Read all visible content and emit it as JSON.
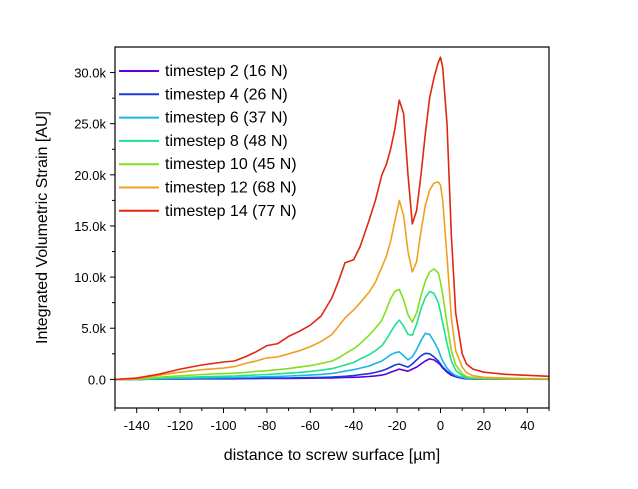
{
  "chart_data": {
    "type": "line",
    "title": "",
    "xlabel": "distance to screw surface   [µm]",
    "ylabel": "Integrated Volumetric Strain   [AU]",
    "xlim": [
      -150,
      50
    ],
    "ylim": [
      -2800,
      32500
    ],
    "x_ticks": [
      -140,
      -120,
      -100,
      -80,
      -60,
      -40,
      -20,
      0,
      20,
      40
    ],
    "x_tick_labels": [
      "-140",
      "-120",
      "-100",
      "-80",
      "-60",
      "-40",
      "-20",
      "0",
      "20",
      "40"
    ],
    "y_ticks": [
      0,
      5000,
      10000,
      15000,
      20000,
      25000,
      30000
    ],
    "y_tick_labels": [
      "0.0",
      "5.0k",
      "10.0k",
      "15.0k",
      "20.0k",
      "25.0k",
      "30.0k"
    ],
    "grid": false,
    "legend_position": "top-left",
    "x": [
      -150,
      -140,
      -130,
      -120,
      -110,
      -100,
      -95,
      -90,
      -85,
      -80,
      -75,
      -70,
      -65,
      -60,
      -55,
      -50,
      -47,
      -44,
      -40,
      -37,
      -33,
      -30,
      -27,
      -25,
      -23,
      -21,
      -19,
      -17,
      -15,
      -13,
      -11,
      -9,
      -7,
      -5,
      -3,
      -1,
      0,
      1,
      3,
      5,
      7,
      10,
      12,
      15,
      20,
      30,
      40,
      50
    ],
    "series": [
      {
        "name": "timestep 2  (16 N)",
        "color": "#6000e0",
        "values": [
          0,
          0,
          30,
          50,
          60,
          60,
          60,
          70,
          70,
          80,
          80,
          90,
          100,
          110,
          120,
          140,
          160,
          180,
          200,
          220,
          280,
          340,
          420,
          520,
          700,
          850,
          1000,
          900,
          800,
          1000,
          1200,
          1500,
          1800,
          2000,
          1900,
          1600,
          1400,
          1100,
          700,
          400,
          250,
          100,
          60,
          40,
          30,
          20,
          20,
          10
        ]
      },
      {
        "name": "timestep 4  (26 N)",
        "color": "#1b38d8",
        "values": [
          0,
          0,
          40,
          60,
          80,
          80,
          90,
          100,
          110,
          110,
          120,
          130,
          150,
          170,
          190,
          220,
          260,
          300,
          380,
          460,
          550,
          680,
          850,
          1000,
          1200,
          1400,
          1500,
          1350,
          1200,
          1500,
          1900,
          2300,
          2550,
          2500,
          2200,
          1800,
          1500,
          1200,
          800,
          500,
          300,
          150,
          80,
          50,
          40,
          30,
          20,
          20
        ]
      },
      {
        "name": "timestep 6  (37 N)",
        "color": "#16b6e8",
        "values": [
          0,
          0,
          60,
          100,
          140,
          160,
          170,
          200,
          230,
          260,
          290,
          330,
          370,
          420,
          490,
          580,
          680,
          800,
          950,
          1100,
          1300,
          1550,
          1800,
          2100,
          2400,
          2600,
          2700,
          2300,
          1900,
          2200,
          2900,
          3800,
          4500,
          4400,
          3700,
          2900,
          2300,
          1800,
          1100,
          650,
          380,
          180,
          100,
          70,
          50,
          40,
          30,
          20
        ]
      },
      {
        "name": "timestep 8  (48 N)",
        "color": "#1ee090",
        "values": [
          0,
          0,
          100,
          180,
          250,
          300,
          330,
          380,
          430,
          480,
          540,
          600,
          680,
          780,
          900,
          1050,
          1220,
          1400,
          1650,
          2000,
          2400,
          2800,
          3300,
          3900,
          4600,
          5300,
          5800,
          5200,
          4400,
          4300,
          5400,
          6900,
          8000,
          8600,
          8400,
          7500,
          6600,
          5500,
          3500,
          1800,
          900,
          350,
          180,
          100,
          70,
          50,
          40,
          30
        ]
      },
      {
        "name": "timestep 10 (45 N)",
        "color": "#80e020",
        "values": [
          0,
          0,
          200,
          350,
          480,
          560,
          600,
          680,
          780,
          850,
          950,
          1050,
          1200,
          1350,
          1550,
          1800,
          2100,
          2500,
          3000,
          3500,
          4300,
          5000,
          5800,
          6800,
          7900,
          8600,
          8800,
          7800,
          6300,
          5600,
          6500,
          8200,
          9600,
          10500,
          10800,
          10400,
          9500,
          8300,
          5500,
          2800,
          1400,
          550,
          280,
          150,
          90,
          60,
          50,
          40
        ]
      },
      {
        "name": "timestep 12 (68 N)",
        "color": "#f0a020",
        "values": [
          0,
          50,
          400,
          700,
          950,
          1100,
          1250,
          1550,
          1800,
          2100,
          2200,
          2500,
          2800,
          3200,
          3700,
          4400,
          5200,
          6000,
          6800,
          7500,
          8500,
          9500,
          11000,
          12000,
          13500,
          15500,
          17500,
          16000,
          12500,
          10500,
          11500,
          14500,
          17000,
          18500,
          19200,
          19300,
          19000,
          17500,
          12000,
          6000,
          2800,
          1200,
          650,
          350,
          200,
          120,
          80,
          60
        ]
      },
      {
        "name": "timestep 14 (77 N)",
        "color": "#e02810",
        "values": [
          0,
          120,
          500,
          1000,
          1400,
          1700,
          1800,
          2200,
          2700,
          3300,
          3500,
          4200,
          4700,
          5300,
          6200,
          8000,
          9600,
          11400,
          11700,
          13000,
          15500,
          17500,
          20000,
          21000,
          22500,
          24500,
          27300,
          26000,
          20000,
          15200,
          16500,
          20000,
          24000,
          27500,
          29500,
          31000,
          31500,
          30500,
          25000,
          14000,
          6500,
          2500,
          1500,
          1000,
          700,
          500,
          400,
          300
        ]
      }
    ]
  }
}
